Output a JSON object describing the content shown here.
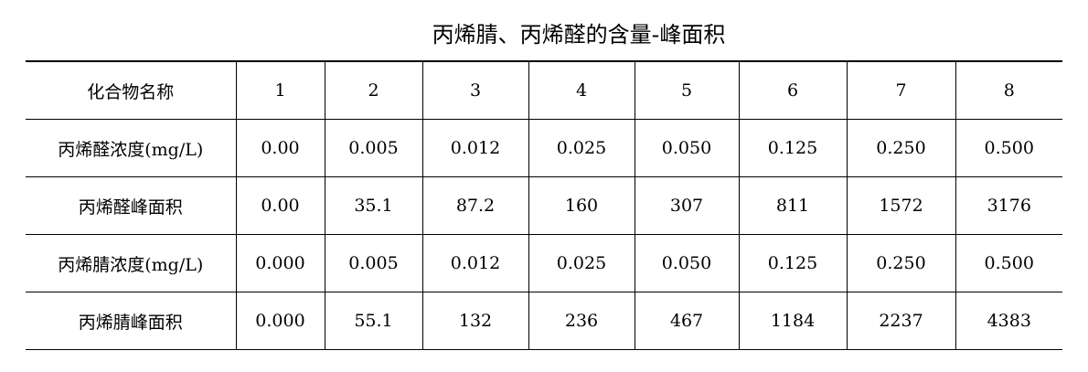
{
  "title": "丙烯腈、丙烯醛的含量-峰面积",
  "table": {
    "header": [
      "化合物名称",
      "1",
      "2",
      "3",
      "4",
      "5",
      "6",
      "7",
      "8"
    ],
    "rows": [
      [
        "丙烯醛浓度(mg/L)",
        "0.00",
        "0.005",
        "0.012",
        "0.025",
        "0.050",
        "0.125",
        "0.250",
        "0.500"
      ],
      [
        "丙烯醛峰面积",
        "0.00",
        "35.1",
        "87.2",
        "160",
        "307",
        "811",
        "1572",
        "3176"
      ],
      [
        "丙烯腈浓度(mg/L)",
        "0.000",
        "0.005",
        "0.012",
        "0.025",
        "0.050",
        "0.125",
        "0.250",
        "0.500"
      ],
      [
        "丙烯腈峰面积",
        "0.000",
        "55.1",
        "132",
        "236",
        "467",
        "1184",
        "2237",
        "4383"
      ]
    ]
  }
}
